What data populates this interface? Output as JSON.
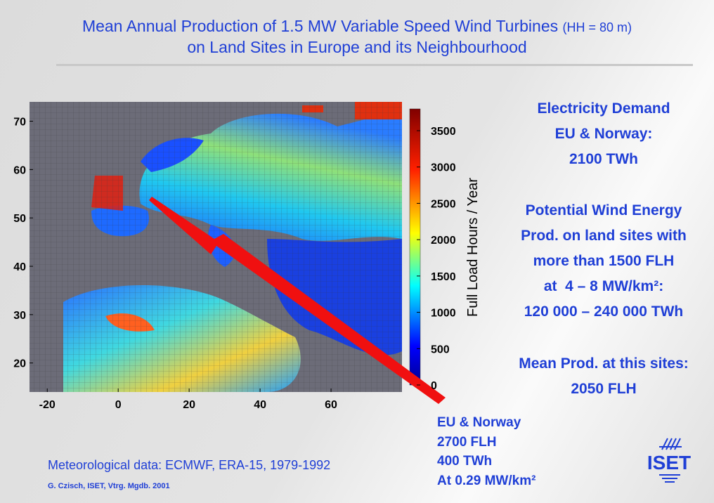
{
  "title": {
    "line1": "Mean Annual Production of 1.5 MW Variable Speed Wind Turbines",
    "line1_small": "(HH = 80 m)",
    "line2": "on Land Sites in Europe and its Neighbourhood"
  },
  "map": {
    "xlim": [
      -25,
      80
    ],
    "ylim": [
      14,
      74
    ],
    "xticks": [
      -20,
      0,
      20,
      40,
      60
    ],
    "yticks": [
      20,
      30,
      40,
      50,
      60,
      70
    ],
    "colorbar": {
      "label": "Full Load Hours / Year",
      "clim": [
        0,
        3800
      ],
      "ticks": [
        0,
        500,
        1000,
        1500,
        2000,
        2500,
        3000,
        3500
      ]
    }
  },
  "side": {
    "demand": [
      "Electricity Demand",
      "EU & Norway:",
      "2100 TWh"
    ],
    "potential": [
      "Potential Wind Energy",
      "Prod. on land sites with",
      "more than 1500 FLH",
      "at  4 – 8 MW/km²:",
      "120 000 – 240 000 TWh"
    ],
    "mean": [
      "Mean Prod. at this sites:",
      "2050 FLH"
    ]
  },
  "callout": [
    "EU & Norway",
    "2700 FLH",
    "400 TWh",
    "At 0.29 MW/km²"
  ],
  "source": "Meteorological data: ECMWF, ERA-15, 1979-1992",
  "credit": "G. Czisch, ISET, Vtrg. Mgdb. 2001",
  "logo": "ISET"
}
